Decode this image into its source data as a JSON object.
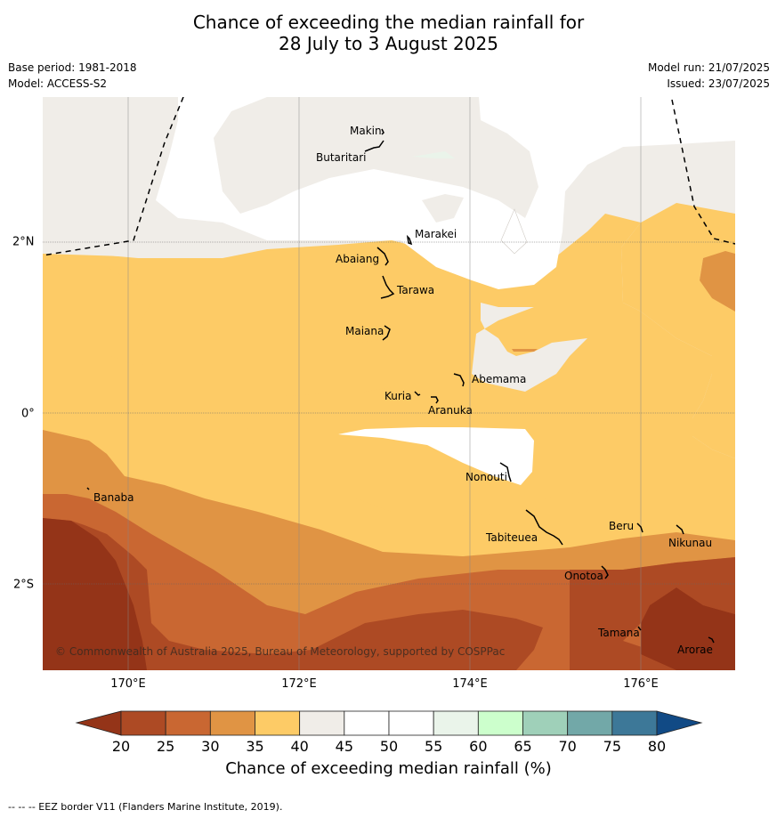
{
  "title": {
    "line1": "Chance of exceeding the median rainfall for",
    "line2": "28 July to 3 August 2025"
  },
  "meta": {
    "base_period": "Base period: 1981-2018",
    "model": "Model: ACCESS-S2",
    "model_run": "Model run: 21/07/2025",
    "issued": "Issued: 23/07/2025"
  },
  "axes": {
    "x_ticks": [
      "170°E",
      "172°E",
      "174°E",
      "176°E"
    ],
    "y_ticks": [
      "2°N",
      "0°",
      "2°S"
    ]
  },
  "places": [
    "Makin",
    "Butaritari",
    "Marakei",
    "Abaiang",
    "Tarawa",
    "Maiana",
    "Abemama",
    "Kuria",
    "Aranuka",
    "Nonouti",
    "Banaba",
    "Tabiteuea",
    "Beru",
    "Nikunau",
    "Onotoa",
    "Tamana",
    "Arorae"
  ],
  "copyright": "© Commonwealth of Australia 2025, Bureau of Meteorology, supported by COSPPac",
  "colorbar": {
    "labels": [
      "20",
      "25",
      "30",
      "35",
      "40",
      "45",
      "50",
      "55",
      "60",
      "65",
      "70",
      "75",
      "80"
    ],
    "colors": {
      "under": "#943418",
      "c20_25": "#ad4a24",
      "c25_30": "#c96732",
      "c30_35": "#e09444",
      "c35_40": "#fdcb66",
      "c40_45": "#f0ede8",
      "c45_50": "#ffffff",
      "c50_55": "#ffffff",
      "c55_60": "#eaf4ea",
      "c60_65": "#ccffcc",
      "c65_70": "#9fd0b9",
      "c70_75": "#72a8a8",
      "c75_80": "#3d7898",
      "over": "#114a85"
    },
    "title": "Chance of exceeding median rainfall (%)"
  },
  "footer": "--  --  -- EEZ border V11 (Flanders Marine Institute, 2019)."
}
